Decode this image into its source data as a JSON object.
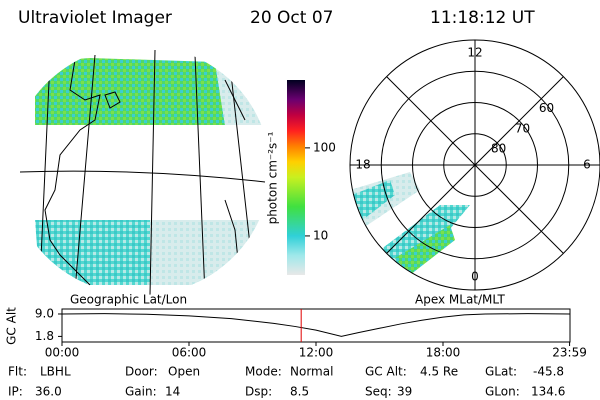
{
  "header": {
    "title": "Ultraviolet Imager",
    "date": "20 Oct 07",
    "time": "11:18:12 UT"
  },
  "geo_map": {
    "label": "Geographic Lat/Lon"
  },
  "colorbar": {
    "label": "photon cm⁻²s⁻¹",
    "log": true,
    "lim": [
      3.6,
      590
    ],
    "ticks": [
      10,
      100
    ]
  },
  "polar_plot": {
    "label": "Apex MLat/MLT",
    "lat_lim": [
      50,
      90
    ],
    "lat_ticks": [
      60,
      70,
      80
    ],
    "mlt_ticks": [
      12,
      18,
      6,
      0
    ]
  },
  "altitude": {
    "ylabel": "GC Alt",
    "ylim": [
      0,
      10.6
    ],
    "yticks": [
      {
        "value": 9.0,
        "label": "9.0"
      },
      {
        "value": 1.8,
        "label": "1.8"
      }
    ],
    "xlim": [
      0,
      24
    ],
    "xticks": [
      {
        "value": 0,
        "label": "00:00"
      },
      {
        "value": 6,
        "label": "06:00"
      },
      {
        "value": 12,
        "label": "12:00"
      },
      {
        "value": 18,
        "label": "18:00"
      },
      {
        "value": 23.98,
        "label": "23:59"
      }
    ],
    "x": [
      0,
      2,
      4,
      6,
      8,
      10,
      11,
      12,
      13.2,
      14,
      15,
      16,
      17,
      18,
      19,
      20,
      22,
      24
    ],
    "values": [
      9.0,
      9.1,
      8.9,
      8.4,
      7.5,
      6.0,
      5.0,
      3.8,
      1.8,
      3.0,
      4.4,
      5.8,
      7.0,
      8.0,
      8.7,
      9.0,
      9.1,
      9.0
    ],
    "current_hour": 11.3
  },
  "footer": [
    [
      "Flt:",
      "LBHL"
    ],
    [
      "IP:",
      "36.0"
    ],
    [
      "Door:",
      "Open"
    ],
    [
      "Gain:",
      "14"
    ],
    [
      "Mode:",
      "Normal"
    ],
    [
      "Dsp:",
      "8.5"
    ],
    [
      "GC Alt:",
      "4.5 Re"
    ],
    [
      "Seq:",
      "39"
    ],
    [
      "GLat:",
      "-45.8"
    ],
    [
      "GLon:",
      "134.6"
    ]
  ]
}
